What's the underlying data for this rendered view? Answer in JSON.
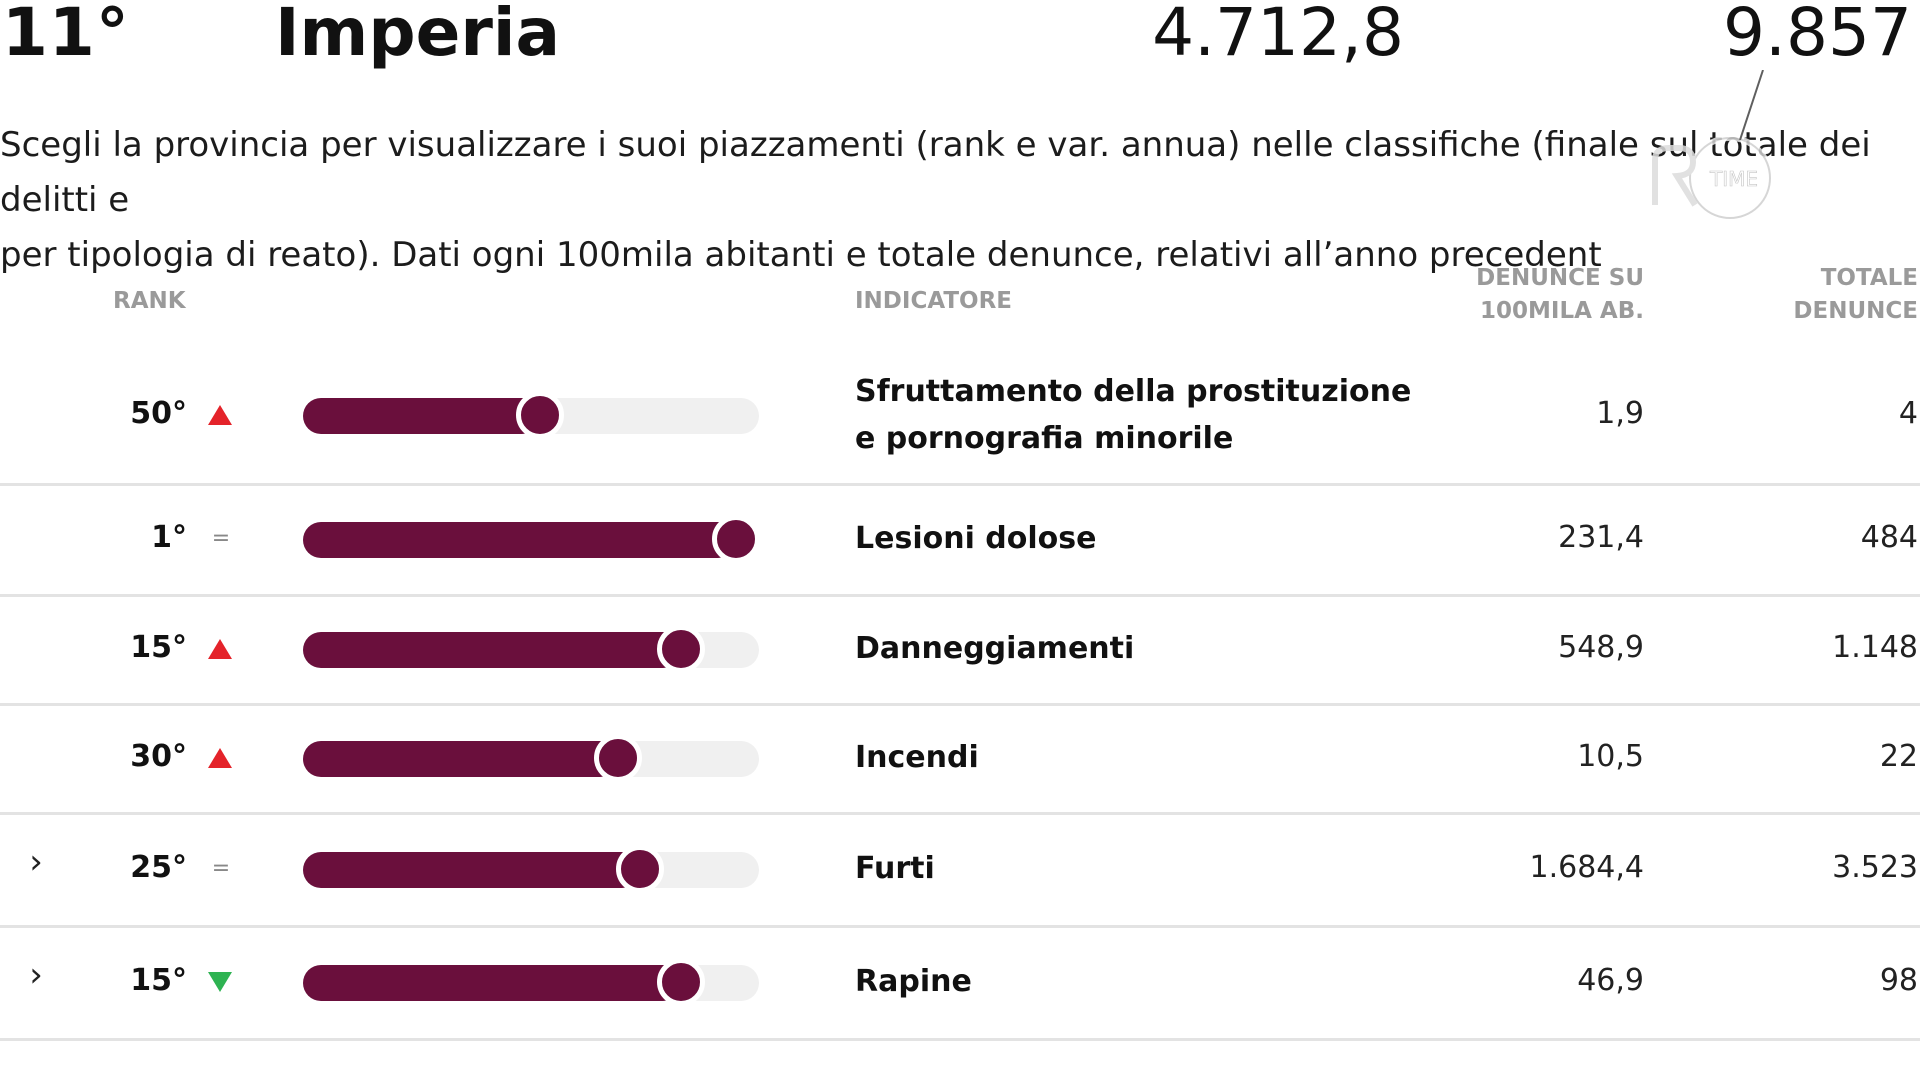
{
  "header": {
    "rank": "11°",
    "province": "Imperia",
    "rate": "4.712,8",
    "total": "9.857"
  },
  "intro": {
    "line1": "Scegli la provincia per visualizzare i suoi piazzamenti (rank e var. annua) nelle classifiche (finale sul totale dei delitti e",
    "line2": "per tipologia di reato). Dati ogni 100mila abitanti e totale denunce, relativi all’anno precedent"
  },
  "watermark": {
    "text": "TIME",
    "icon": "rtime-logo"
  },
  "table": {
    "col_rank": "RANK",
    "col_indicator": "INDICATORE",
    "col_rate_line1": "DENUNCE SU",
    "col_rate_line2": "100MILA AB.",
    "col_total_line1": "TOTALE",
    "col_total_line2": "DENUNCE",
    "colors": {
      "bar": "#6a0f3c",
      "up": "#e4232a",
      "down": "#2eb352",
      "track": "#f0f0f0"
    },
    "rows": [
      {
        "expandable": false,
        "rank": "50°",
        "trend": "up",
        "level": 0.52,
        "label_line1": "Sfruttamento della prostituzione",
        "label_line2": "e pornografia minorile",
        "rate": "1,9",
        "total": "4"
      },
      {
        "expandable": false,
        "rank": "1°",
        "trend": "same",
        "level": 0.95,
        "label_line1": "Lesioni dolose",
        "label_line2": "",
        "rate": "231,4",
        "total": "484"
      },
      {
        "expandable": false,
        "rank": "15°",
        "trend": "up",
        "level": 0.83,
        "label_line1": "Danneggiamenti",
        "label_line2": "",
        "rate": "548,9",
        "total": "1.148"
      },
      {
        "expandable": false,
        "rank": "30°",
        "trend": "up",
        "level": 0.69,
        "label_line1": "Incendi",
        "label_line2": "",
        "rate": "10,5",
        "total": "22"
      },
      {
        "expandable": true,
        "rank": "25°",
        "trend": "same",
        "level": 0.74,
        "label_line1": "Furti",
        "label_line2": "",
        "rate": "1.684,4",
        "total": "3.523"
      },
      {
        "expandable": true,
        "rank": "15°",
        "trend": "down",
        "level": 0.83,
        "label_line1": "Rapine",
        "label_line2": "",
        "rate": "46,9",
        "total": "98"
      }
    ]
  }
}
